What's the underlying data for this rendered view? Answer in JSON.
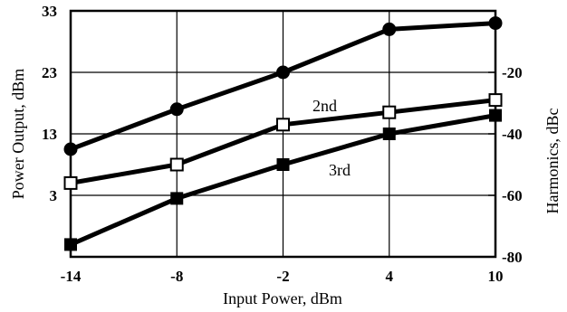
{
  "chart_data": {
    "type": "line",
    "xlabel": "Input Power, dBm",
    "ylabel_left": "Power Output, dBm",
    "ylabel_right": "Harmonics, dBc",
    "x": [
      -14,
      -8,
      -2,
      4,
      10
    ],
    "x_ticks": [
      "-14",
      "-8",
      "-2",
      "4",
      "10"
    ],
    "xlim": [
      -14,
      10
    ],
    "y_left_ticks": [
      "33",
      "23",
      "13",
      "3"
    ],
    "y_left_tick_values": [
      33,
      23,
      13,
      3
    ],
    "ylim_left": [
      -7,
      33
    ],
    "y_right_ticks": [
      "-20",
      "-40",
      "-60",
      "-80"
    ],
    "y_right_tick_values": [
      -20,
      -40,
      -60,
      -80
    ],
    "ylim_right": [
      -80,
      0
    ],
    "grid": true,
    "series": [
      {
        "axis": "left",
        "marker": "filled-circle",
        "values": [
          10.5,
          17,
          23,
          30,
          31
        ]
      },
      {
        "name": "2nd",
        "axis": "right",
        "marker": "open-square",
        "values": [
          -56,
          -50,
          -37,
          -33,
          -29
        ]
      },
      {
        "name": "3rd",
        "axis": "right",
        "marker": "filled-square",
        "values": [
          -76,
          -61,
          -50,
          -40,
          -34
        ]
      }
    ]
  }
}
